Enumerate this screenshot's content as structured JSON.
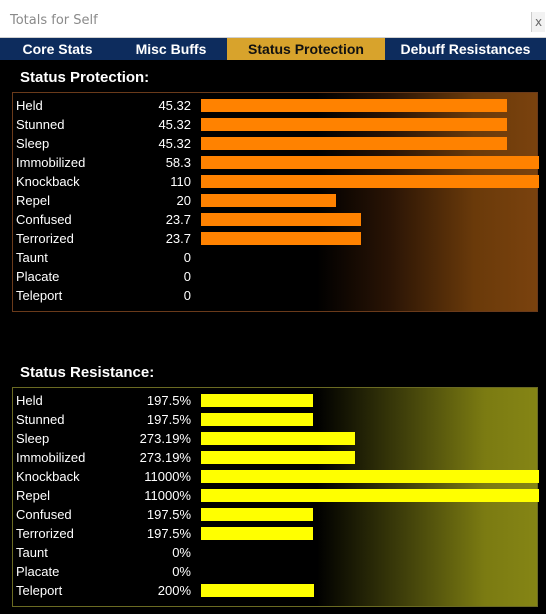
{
  "window": {
    "title": "Totals for Self",
    "close_label": "x"
  },
  "tabs": [
    {
      "label": "Core Stats",
      "active": false
    },
    {
      "label": "Misc Buffs",
      "active": false
    },
    {
      "label": "Status Protection",
      "active": true
    },
    {
      "label": "Debuff Resistances",
      "active": false
    }
  ],
  "protection": {
    "title": "Status Protection:",
    "bar_color": "#ff8200",
    "rows": [
      {
        "label": "Held",
        "value": "45.32",
        "fill": 0.906
      },
      {
        "label": "Stunned",
        "value": "45.32",
        "fill": 0.906
      },
      {
        "label": "Sleep",
        "value": "45.32",
        "fill": 0.906
      },
      {
        "label": "Immobilized",
        "value": "58.3",
        "fill": 1.0
      },
      {
        "label": "Knockback",
        "value": "110",
        "fill": 1.0
      },
      {
        "label": "Repel",
        "value": "20",
        "fill": 0.4
      },
      {
        "label": "Confused",
        "value": "23.7",
        "fill": 0.474
      },
      {
        "label": "Terrorized",
        "value": "23.7",
        "fill": 0.474
      },
      {
        "label": "Taunt",
        "value": "0",
        "fill": 0
      },
      {
        "label": "Placate",
        "value": "0",
        "fill": 0
      },
      {
        "label": "Teleport",
        "value": "0",
        "fill": 0
      }
    ]
  },
  "resistance": {
    "title": "Status Resistance:",
    "bar_color": "#ffff00",
    "rows": [
      {
        "label": "Held",
        "value": "197.5%",
        "fill": 0.33
      },
      {
        "label": "Stunned",
        "value": "197.5%",
        "fill": 0.33
      },
      {
        "label": "Sleep",
        "value": "273.19%",
        "fill": 0.456
      },
      {
        "label": "Immobilized",
        "value": "273.19%",
        "fill": 0.456
      },
      {
        "label": "Knockback",
        "value": "11000%",
        "fill": 1.0
      },
      {
        "label": "Repel",
        "value": "11000%",
        "fill": 1.0
      },
      {
        "label": "Confused",
        "value": "197.5%",
        "fill": 0.33
      },
      {
        "label": "Terrorized",
        "value": "197.5%",
        "fill": 0.33
      },
      {
        "label": "Taunt",
        "value": "0%",
        "fill": 0
      },
      {
        "label": "Placate",
        "value": "0%",
        "fill": 0
      },
      {
        "label": "Teleport",
        "value": "200%",
        "fill": 0.334
      }
    ]
  }
}
